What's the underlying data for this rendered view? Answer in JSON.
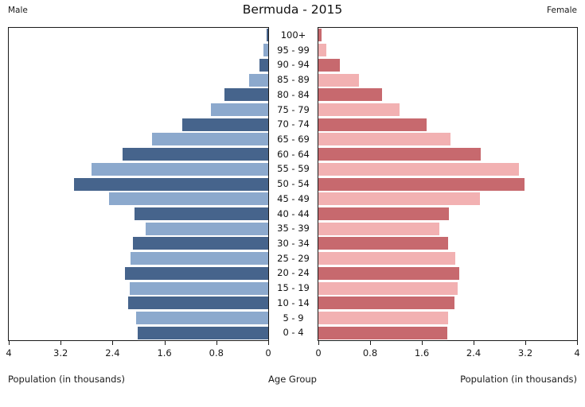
{
  "header": {
    "male_label": "Male",
    "female_label": "Female",
    "title": "Bermuda - 2015"
  },
  "axis": {
    "left_caption": "Population (in thousands)",
    "center_caption": "Age Group",
    "right_caption": "Population (in thousands)",
    "left_ticks": [
      "4",
      "3.2",
      "2.4",
      "1.6",
      "0.8",
      "0"
    ],
    "right_ticks": [
      "0",
      "0.8",
      "1.6",
      "2.4",
      "3.2",
      "4"
    ]
  },
  "chart_data": {
    "type": "bar",
    "subtype": "population-pyramid",
    "title": "Bermuda - 2015",
    "xlabel": "Population (in thousands)",
    "center_label": "Age Group",
    "xlim": [
      0,
      4
    ],
    "grid": false,
    "age_groups": [
      "100+",
      "95 - 99",
      "90 - 94",
      "85 - 89",
      "80 - 84",
      "75 - 79",
      "70 - 74",
      "65 - 69",
      "60 - 64",
      "55 - 59",
      "50 - 54",
      "45 - 49",
      "40 - 44",
      "35 - 39",
      "30 - 34",
      "25 - 29",
      "20 - 24",
      "15 - 19",
      "10 - 14",
      "5 - 9",
      "0 - 4"
    ],
    "series": [
      {
        "name": "Male",
        "side": "left",
        "values": [
          0.02,
          0.07,
          0.14,
          0.3,
          0.67,
          0.88,
          1.33,
          1.79,
          2.25,
          2.73,
          3.0,
          2.46,
          2.06,
          1.89,
          2.09,
          2.12,
          2.21,
          2.14,
          2.16,
          2.04,
          2.01
        ]
      },
      {
        "name": "Female",
        "side": "right",
        "values": [
          0.05,
          0.12,
          0.33,
          0.63,
          0.99,
          1.25,
          1.67,
          2.04,
          2.51,
          3.1,
          3.19,
          2.5,
          2.02,
          1.87,
          2.0,
          2.12,
          2.18,
          2.15,
          2.11,
          2.01,
          1.99
        ]
      }
    ],
    "colors": {
      "male_dark": "#46648c",
      "male_light": "#8ca9cd",
      "female_dark": "#c7696e",
      "female_light": "#f2b1b2",
      "axis": "#1a1a1a"
    }
  }
}
